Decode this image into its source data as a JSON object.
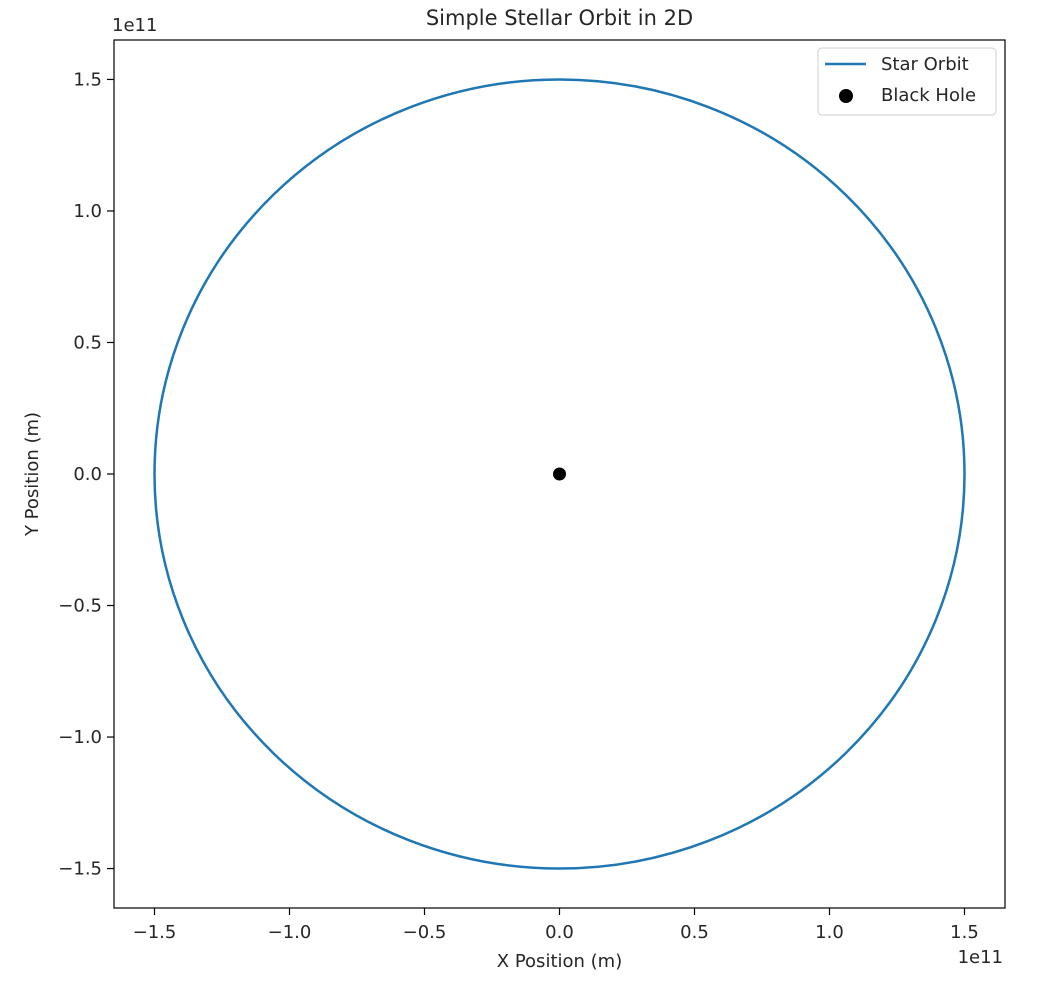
{
  "chart_data": {
    "type": "line",
    "title": "Simple Stellar Orbit in 2D",
    "xlabel": "X Position (m)",
    "ylabel": "Y Position (m)",
    "x_offset_text": "1e11",
    "y_offset_text": "1e11",
    "scale": 100000000000.0,
    "xlim": [
      -1.65,
      1.65
    ],
    "ylim": [
      -1.65,
      1.65
    ],
    "xticks": [
      -1.5,
      -1.0,
      -0.5,
      0.0,
      0.5,
      1.0,
      1.5
    ],
    "xtick_labels": [
      "−1.5",
      "−1.0",
      "−0.5",
      "0.0",
      "0.5",
      "1.0",
      "1.5"
    ],
    "yticks": [
      -1.5,
      -1.0,
      -0.5,
      0.0,
      0.5,
      1.0,
      1.5
    ],
    "ytick_labels": [
      "−1.5",
      "−1.0",
      "−0.5",
      "0.0",
      "0.5",
      "1.0",
      "1.5"
    ],
    "grid": false,
    "legend_position": "upper right",
    "series": [
      {
        "name": "Star Orbit",
        "kind": "line",
        "color": "#1f77b4",
        "shape": "circle",
        "center": [
          0.0,
          0.0
        ],
        "radius": 1.5
      },
      {
        "name": "Black Hole",
        "kind": "scatter",
        "color": "#000000",
        "points": [
          [
            0.0,
            0.0
          ]
        ]
      }
    ]
  }
}
